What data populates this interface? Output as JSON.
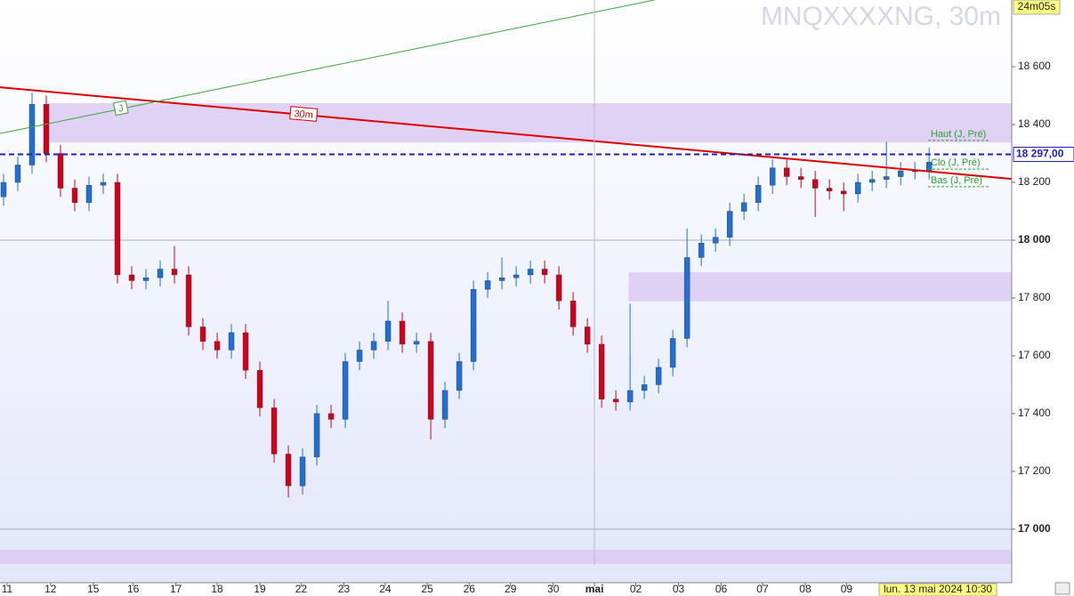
{
  "chart_data": {
    "type": "candlestick",
    "title": "MNQXXXXNG, 30m",
    "timer": "24m05s",
    "cursor_label": "lun. 13 mai 2024 10:30",
    "xlim": [
      -0.25,
      70.8
    ],
    "ylim": [
      16815,
      18831
    ],
    "xticks": [
      {
        "value": 0.25,
        "label": "11"
      },
      {
        "value": 3.3,
        "label": "12"
      },
      {
        "value": 6.3,
        "label": "15"
      },
      {
        "value": 9.1,
        "label": "16"
      },
      {
        "value": 12.1,
        "label": "17"
      },
      {
        "value": 15,
        "label": "18"
      },
      {
        "value": 18,
        "label": "19"
      },
      {
        "value": 20.9,
        "label": "22"
      },
      {
        "value": 23.9,
        "label": "23"
      },
      {
        "value": 26.8,
        "label": "24"
      },
      {
        "value": 29.75,
        "label": "25"
      },
      {
        "value": 32.7,
        "label": "26"
      },
      {
        "value": 35.6,
        "label": "29"
      },
      {
        "value": 38.6,
        "label": "30"
      },
      {
        "value": 41.5,
        "label": "mai"
      },
      {
        "value": 44.4,
        "label": "02"
      },
      {
        "value": 47.4,
        "label": "03"
      },
      {
        "value": 50.4,
        "label": "06"
      },
      {
        "value": 53.3,
        "label": "07"
      },
      {
        "value": 56.3,
        "label": "08"
      },
      {
        "value": 59.2,
        "label": "09"
      }
    ],
    "yticks": [
      {
        "value": 18600,
        "label": "18 600"
      },
      {
        "value": 18400,
        "label": "18 400"
      },
      {
        "value": 18200,
        "label": "18 200"
      },
      {
        "value": 18000,
        "label": "18 000"
      },
      {
        "value": 17800,
        "label": "17 800"
      },
      {
        "value": 17600,
        "label": "17 600"
      },
      {
        "value": 17400,
        "label": "17 400"
      },
      {
        "value": 17200,
        "label": "17 200"
      },
      {
        "value": 17000,
        "label": "17 000"
      }
    ],
    "grid_values": [
      18000,
      17000
    ],
    "up_color": "#1f6fd6",
    "down_color": "#d0021b",
    "open": [
      18150,
      18200,
      18260,
      18470,
      18300,
      18180,
      18130,
      18190,
      18200,
      17880,
      17860,
      17870,
      17900,
      17880,
      17700,
      17650,
      17620,
      17680,
      17550,
      17420,
      17260,
      17150,
      17250,
      17400,
      17380,
      17580,
      17620,
      17650,
      17720,
      17640,
      17650,
      17380,
      17480,
      17580,
      17830,
      17860,
      17870,
      17880,
      17900,
      17880,
      17790,
      17700,
      17640,
      17450,
      17440,
      17480,
      17500,
      17560,
      17660,
      17940,
      17990,
      18010,
      18100,
      18130,
      18190,
      18250,
      18220,
      18210,
      18180,
      18170,
      18160,
      18200,
      18210,
      18220,
      18240,
      18240
    ],
    "high": [
      18230,
      18290,
      18510,
      18500,
      18330,
      18210,
      18220,
      18230,
      18230,
      17910,
      17900,
      17930,
      17980,
      17910,
      17730,
      17680,
      17710,
      17710,
      17580,
      17450,
      17290,
      17280,
      17430,
      17430,
      17610,
      17650,
      17680,
      17790,
      17750,
      17680,
      17680,
      17510,
      17610,
      17860,
      17890,
      17940,
      17910,
      17930,
      17930,
      17910,
      17820,
      17730,
      17670,
      17480,
      17780,
      17530,
      17590,
      17690,
      18040,
      18020,
      18040,
      18130,
      18160,
      18220,
      18280,
      18280,
      18250,
      18240,
      18210,
      18200,
      18230,
      18240,
      18340,
      18270,
      18270,
      18320
    ],
    "low": [
      18120,
      18170,
      18230,
      18270,
      18150,
      18100,
      18100,
      18160,
      17850,
      17830,
      17830,
      17840,
      17850,
      17670,
      17620,
      17590,
      17590,
      17520,
      17390,
      17230,
      17110,
      17120,
      17220,
      17350,
      17350,
      17550,
      17590,
      17620,
      17610,
      17610,
      17310,
      17350,
      17450,
      17550,
      17800,
      17830,
      17840,
      17850,
      17850,
      17760,
      17670,
      17610,
      17420,
      17410,
      17410,
      17450,
      17470,
      17530,
      17630,
      17910,
      17960,
      17980,
      18070,
      18100,
      18160,
      18190,
      18180,
      18080,
      18140,
      18100,
      18130,
      18170,
      18180,
      18190,
      18210,
      18210
    ],
    "close": [
      18200,
      18260,
      18470,
      18300,
      18180,
      18130,
      18190,
      18200,
      17880,
      17860,
      17870,
      17900,
      17880,
      17700,
      17650,
      17620,
      17680,
      17550,
      17420,
      17260,
      17150,
      17250,
      17400,
      17380,
      17580,
      17620,
      17650,
      17720,
      17640,
      17650,
      17380,
      17480,
      17580,
      17830,
      17860,
      17870,
      17880,
      17900,
      17880,
      17790,
      17700,
      17640,
      17450,
      17440,
      17480,
      17500,
      17560,
      17660,
      17940,
      17990,
      18010,
      18100,
      18130,
      18190,
      18250,
      18220,
      18210,
      18180,
      18170,
      18160,
      18200,
      18210,
      18220,
      18240,
      18240,
      18270
    ],
    "zones": [
      {
        "low": 18338,
        "high": 18474,
        "from": 3.0,
        "color": "#dccaf2"
      },
      {
        "low": 17788,
        "high": 17889,
        "from": 43.9,
        "color": "#dccaf2"
      },
      {
        "low": 16880,
        "high": 16929,
        "from": -0.25,
        "color": "#dccaf2"
      }
    ],
    "trendlines": [
      {
        "from": [
          -0.25,
          18529
        ],
        "to": [
          70.8,
          18212
        ],
        "color": "#e00000",
        "label": "30m"
      },
      {
        "from": [
          -0.25,
          18369
        ],
        "to": [
          45.7,
          18831
        ],
        "color": "#3aa63a",
        "label": "J"
      }
    ],
    "price_line": {
      "value": 18297,
      "label": "18 297,00",
      "color": "#2020c0"
    },
    "levels": [
      {
        "label": "Haut (J, Pré)",
        "value": 18345
      },
      {
        "label": "Clo (J, Pré)",
        "value": 18246
      },
      {
        "label": "Bas (J, Pré)",
        "value": 18185
      }
    ]
  }
}
